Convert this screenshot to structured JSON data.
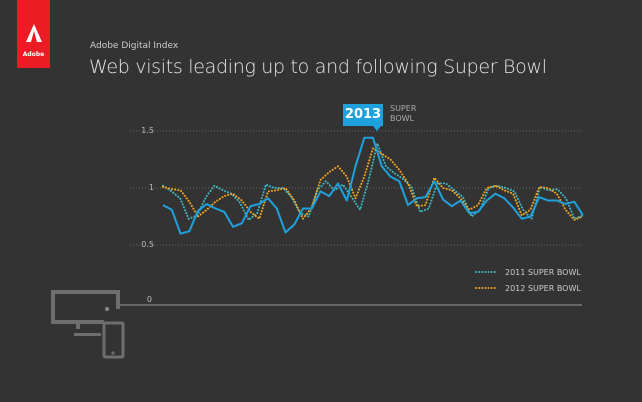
{
  "brand": {
    "name": "Adobe",
    "color": "#ed1c24"
  },
  "header": {
    "subtitle": "Adobe Digital Index",
    "title": "Web visits leading up to and following Super Bowl"
  },
  "annotation": {
    "year": "2013",
    "label_line1": "SUPER",
    "label_line2": "BOWL",
    "color": "#1ea1dc"
  },
  "icon": "desktop-and-mobile-icon",
  "chart_data": {
    "type": "line",
    "title": "Web visits leading up to and following Super Bowl",
    "xlabel": "",
    "ylabel": "",
    "ylim": [
      0,
      1.5
    ],
    "yticks": [
      {
        "value": 1.5,
        "label": "1.5"
      },
      {
        "value": 1,
        "label": "1"
      },
      {
        "value": 0.5,
        "label": "0.5"
      },
      {
        "value": 0,
        "label": "0"
      }
    ],
    "grid": true,
    "legend_position": "bottom-right",
    "series": [
      {
        "style": "solid",
        "color": "#1ea1dc",
        "values": [
          0.85,
          0.81,
          0.6,
          0.62,
          0.8,
          0.86,
          0.82,
          0.79,
          0.66,
          0.69,
          0.84,
          0.86,
          0.91,
          0.82,
          0.61,
          0.68,
          0.82,
          0.82,
          0.97,
          0.93,
          1.04,
          0.89,
          1.19,
          1.44,
          1.44,
          1.19,
          1.1,
          1.06,
          0.85,
          0.91,
          0.92,
          1.06,
          0.9,
          0.84,
          0.89,
          0.78,
          0.79,
          0.89,
          0.95,
          0.91,
          0.83,
          0.73,
          0.75,
          0.92,
          0.89,
          0.89,
          0.86,
          0.88,
          0.76
        ]
      },
      {
        "name": "2011 SUPER BOWL",
        "style": "dotted",
        "color": "#3fb8c4",
        "values": [
          1.02,
          0.97,
          0.91,
          0.73,
          0.76,
          0.92,
          1.02,
          0.98,
          0.95,
          0.87,
          0.72,
          0.78,
          1.03,
          1.0,
          1.0,
          0.92,
          0.78,
          0.75,
          0.98,
          1.06,
          0.98,
          1.03,
          0.92,
          0.81,
          1.07,
          1.39,
          1.19,
          1.13,
          1.08,
          1.01,
          0.79,
          0.82,
          1.04,
          1.04,
          0.98,
          0.92,
          0.75,
          0.81,
          1.0,
          1.02,
          1.0,
          0.97,
          0.81,
          0.73,
          1.01,
          0.98,
          0.99,
          0.91,
          0.73,
          0.76
        ]
      },
      {
        "name": "2012 SUPER BOWL",
        "style": "dotted",
        "color": "#f2a41c",
        "values": [
          1.01,
          0.99,
          0.98,
          0.88,
          0.75,
          0.81,
          0.88,
          0.93,
          0.95,
          0.89,
          0.79,
          0.73,
          0.97,
          0.98,
          1.0,
          0.89,
          0.73,
          0.83,
          1.07,
          1.14,
          1.19,
          1.1,
          0.91,
          1.1,
          1.35,
          1.3,
          1.25,
          1.16,
          1.04,
          0.84,
          0.85,
          1.09,
          1.0,
          0.98,
          0.91,
          0.81,
          0.85,
          1.0,
          1.02,
          0.98,
          0.95,
          0.76,
          0.81,
          1.01,
          1.0,
          0.95,
          0.81,
          0.72,
          0.75
        ]
      }
    ]
  }
}
